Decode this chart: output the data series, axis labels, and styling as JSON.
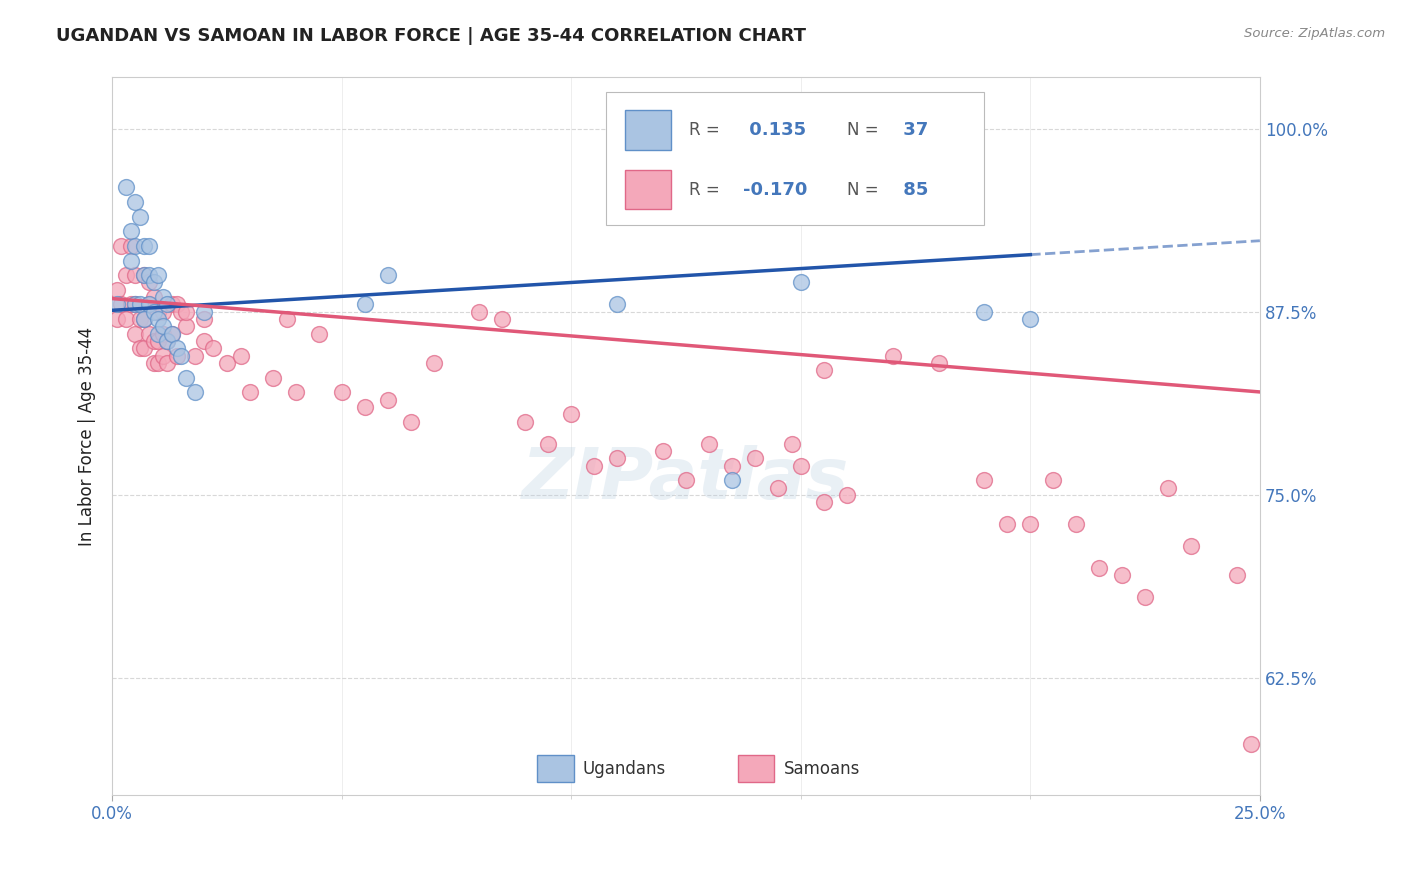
{
  "title": "UGANDAN VS SAMOAN IN LABOR FORCE | AGE 35-44 CORRELATION CHART",
  "source_text": "Source: ZipAtlas.com",
  "ylabel": "In Labor Force | Age 35-44",
  "xlim": [
    0.0,
    0.25
  ],
  "ylim": [
    0.545,
    1.035
  ],
  "ytick_positions": [
    0.625,
    0.75,
    0.875,
    1.0
  ],
  "ytick_labels": [
    "62.5%",
    "75.0%",
    "87.5%",
    "100.0%"
  ],
  "xtick_positions": [
    0.0,
    0.25
  ],
  "xtick_labels": [
    "0.0%",
    "25.0%"
  ],
  "r_ugandan": 0.135,
  "n_ugandan": 37,
  "r_samoan": -0.17,
  "n_samoan": 85,
  "ugandan_color": "#aac4e2",
  "samoan_color": "#f4a8ba",
  "ugandan_edge_color": "#6090c8",
  "samoan_edge_color": "#e06888",
  "ugandan_line_color": "#2255aa",
  "samoan_line_color": "#e05878",
  "background_color": "#ffffff",
  "grid_color": "#d8d8d8",
  "title_color": "#222222",
  "axis_label_color": "#222222",
  "tick_color": "#4477bb",
  "watermark": "ZIPatlas",
  "ugandan_x": [
    0.001,
    0.003,
    0.004,
    0.004,
    0.005,
    0.005,
    0.005,
    0.006,
    0.006,
    0.007,
    0.007,
    0.007,
    0.008,
    0.008,
    0.008,
    0.009,
    0.009,
    0.01,
    0.01,
    0.01,
    0.011,
    0.011,
    0.012,
    0.012,
    0.013,
    0.014,
    0.015,
    0.016,
    0.018,
    0.02,
    0.055,
    0.06,
    0.11,
    0.135,
    0.15,
    0.19,
    0.2
  ],
  "ugandan_y": [
    0.88,
    0.96,
    0.93,
    0.91,
    0.95,
    0.92,
    0.88,
    0.94,
    0.88,
    0.92,
    0.9,
    0.87,
    0.92,
    0.9,
    0.88,
    0.895,
    0.875,
    0.9,
    0.87,
    0.86,
    0.885,
    0.865,
    0.855,
    0.88,
    0.86,
    0.85,
    0.845,
    0.83,
    0.82,
    0.875,
    0.88,
    0.9,
    0.88,
    0.76,
    0.895,
    0.875,
    0.87
  ],
  "samoan_x": [
    0.001,
    0.001,
    0.002,
    0.002,
    0.003,
    0.003,
    0.004,
    0.004,
    0.005,
    0.005,
    0.005,
    0.006,
    0.006,
    0.007,
    0.007,
    0.007,
    0.008,
    0.008,
    0.008,
    0.009,
    0.009,
    0.009,
    0.01,
    0.01,
    0.01,
    0.011,
    0.011,
    0.011,
    0.012,
    0.012,
    0.013,
    0.013,
    0.014,
    0.014,
    0.015,
    0.016,
    0.016,
    0.018,
    0.02,
    0.02,
    0.022,
    0.025,
    0.028,
    0.03,
    0.035,
    0.038,
    0.04,
    0.045,
    0.05,
    0.055,
    0.06,
    0.065,
    0.07,
    0.08,
    0.085,
    0.09,
    0.095,
    0.1,
    0.105,
    0.11,
    0.12,
    0.125,
    0.13,
    0.135,
    0.14,
    0.145,
    0.148,
    0.15,
    0.155,
    0.155,
    0.16,
    0.17,
    0.18,
    0.19,
    0.195,
    0.2,
    0.205,
    0.21,
    0.215,
    0.22,
    0.225,
    0.23,
    0.235,
    0.245,
    0.248
  ],
  "samoan_y": [
    0.89,
    0.87,
    0.92,
    0.88,
    0.9,
    0.87,
    0.92,
    0.88,
    0.88,
    0.86,
    0.9,
    0.87,
    0.85,
    0.9,
    0.87,
    0.85,
    0.895,
    0.86,
    0.88,
    0.885,
    0.855,
    0.84,
    0.875,
    0.855,
    0.84,
    0.875,
    0.86,
    0.845,
    0.855,
    0.84,
    0.88,
    0.86,
    0.845,
    0.88,
    0.875,
    0.865,
    0.875,
    0.845,
    0.87,
    0.855,
    0.85,
    0.84,
    0.845,
    0.82,
    0.83,
    0.87,
    0.82,
    0.86,
    0.82,
    0.81,
    0.815,
    0.8,
    0.84,
    0.875,
    0.87,
    0.8,
    0.785,
    0.805,
    0.77,
    0.775,
    0.78,
    0.76,
    0.785,
    0.77,
    0.775,
    0.755,
    0.785,
    0.77,
    0.745,
    0.835,
    0.75,
    0.845,
    0.84,
    0.76,
    0.73,
    0.73,
    0.76,
    0.73,
    0.7,
    0.695,
    0.68,
    0.755,
    0.715,
    0.695,
    0.58
  ]
}
